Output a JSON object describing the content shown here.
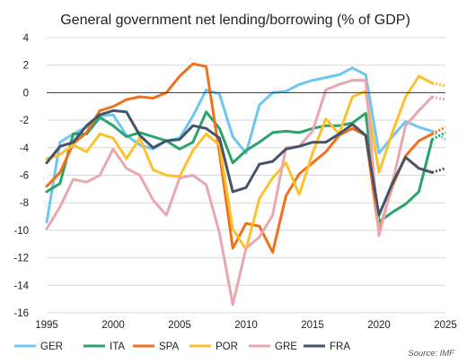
{
  "chart_data": {
    "type": "line",
    "title": "General government net lending/borrowing (% of GDP)",
    "xlabel": "",
    "ylabel": "",
    "xlim": [
      1995,
      2025
    ],
    "ylim": [
      -16,
      4
    ],
    "x_ticks": [
      1995,
      2000,
      2005,
      2010,
      2015,
      2020,
      2025
    ],
    "y_ticks": [
      4,
      2,
      0,
      -2,
      -4,
      -6,
      -8,
      -10,
      -12,
      -14,
      -16
    ],
    "grid": true,
    "legend_position": "bottom",
    "source": "Source: IMF",
    "x": [
      1995,
      1996,
      1997,
      1998,
      1999,
      2000,
      2001,
      2002,
      2003,
      2004,
      2005,
      2006,
      2007,
      2008,
      2009,
      2010,
      2011,
      2012,
      2013,
      2014,
      2015,
      2016,
      2017,
      2018,
      2019,
      2020,
      2021,
      2022,
      2023,
      2024,
      2025
    ],
    "series": [
      {
        "name": "GER",
        "color": "#6fc6f0",
        "values": [
          -9.4,
          -3.6,
          -3.0,
          -2.5,
          -1.7,
          -1.6,
          -3.1,
          -3.8,
          -4.1,
          -3.5,
          -3.3,
          -1.7,
          0.2,
          -0.1,
          -3.2,
          -4.4,
          -0.9,
          0.0,
          0.1,
          0.6,
          0.9,
          1.1,
          1.3,
          1.8,
          1.3,
          -4.4,
          -3.2,
          -2.1,
          -2.5,
          -2.8,
          -3.4
        ]
      },
      {
        "name": "ITA",
        "color": "#2ca36b",
        "values": [
          -7.2,
          -6.6,
          -3.0,
          -3.0,
          -1.8,
          -2.4,
          -3.2,
          -2.9,
          -3.2,
          -3.5,
          -4.1,
          -3.6,
          -1.4,
          -2.6,
          -5.1,
          -4.2,
          -3.6,
          -2.9,
          -2.8,
          -2.9,
          -2.6,
          -2.4,
          -2.4,
          -2.2,
          -1.5,
          -9.4,
          -8.7,
          -8.1,
          -7.2,
          -3.4,
          -2.9
        ]
      },
      {
        "name": "SPA",
        "color": "#f0701c",
        "values": [
          -6.8,
          -5.8,
          -3.7,
          -2.9,
          -1.3,
          -1.0,
          -0.5,
          -0.3,
          -0.4,
          0.0,
          1.2,
          2.1,
          1.9,
          -4.4,
          -11.3,
          -9.5,
          -9.7,
          -11.6,
          -7.5,
          -5.9,
          -5.1,
          -4.3,
          -3.1,
          -2.6,
          -3.1,
          -10.1,
          -6.8,
          -4.6,
          -3.5,
          -3.0,
          -2.5
        ]
      },
      {
        "name": "POR",
        "color": "#fcc12c",
        "values": [
          -4.8,
          -4.5,
          -3.8,
          -4.3,
          -3.0,
          -3.3,
          -4.8,
          -3.3,
          -5.6,
          -6.0,
          -6.1,
          -4.2,
          -3.0,
          -3.8,
          -9.9,
          -11.4,
          -7.7,
          -6.2,
          -5.1,
          -7.4,
          -4.4,
          -1.9,
          -3.0,
          -0.3,
          0.1,
          -5.8,
          -2.9,
          -0.3,
          1.2,
          0.7,
          0.5
        ]
      },
      {
        "name": "GRE",
        "color": "#e9a7b0",
        "values": [
          -9.9,
          -8.3,
          -6.3,
          -6.5,
          -6.0,
          -4.1,
          -5.5,
          -6.0,
          -7.8,
          -8.9,
          -6.2,
          -6.0,
          -6.7,
          -10.2,
          -15.4,
          -11.3,
          -10.5,
          -8.9,
          -4.0,
          -3.9,
          -2.8,
          0.2,
          0.6,
          0.9,
          0.9,
          -10.4,
          -6.6,
          -2.4,
          -1.3,
          -0.3,
          -0.5
        ]
      },
      {
        "name": "FRA",
        "color": "#44546a",
        "values": [
          -5.1,
          -3.9,
          -3.6,
          -2.4,
          -1.6,
          -1.3,
          -1.4,
          -3.1,
          -4.0,
          -3.5,
          -3.4,
          -2.4,
          -2.6,
          -3.3,
          -7.2,
          -6.9,
          -5.2,
          -5.0,
          -4.1,
          -3.9,
          -3.6,
          -3.6,
          -3.0,
          -2.3,
          -3.1,
          -8.9,
          -6.6,
          -4.7,
          -5.5,
          -5.8,
          -5.5
        ]
      }
    ]
  }
}
